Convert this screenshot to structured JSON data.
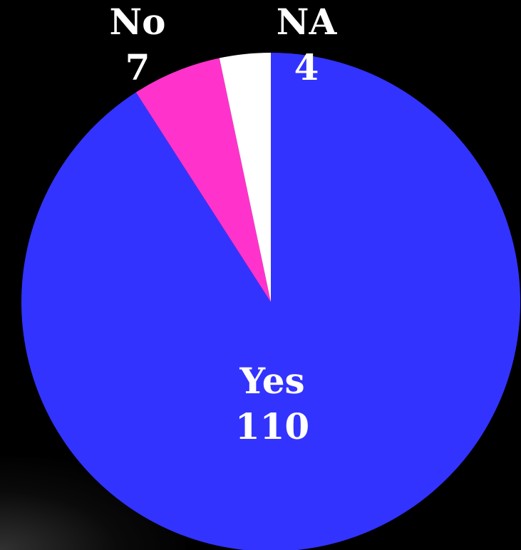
{
  "chart_data": {
    "type": "pie",
    "categories": [
      "Yes",
      "No",
      "NA"
    ],
    "values": [
      110,
      7,
      4
    ],
    "colors": [
      "#3333ff",
      "#ff33cc",
      "#ffffff"
    ],
    "start": "12 o'clock",
    "direction": "clockwise",
    "background": "#000000"
  }
}
